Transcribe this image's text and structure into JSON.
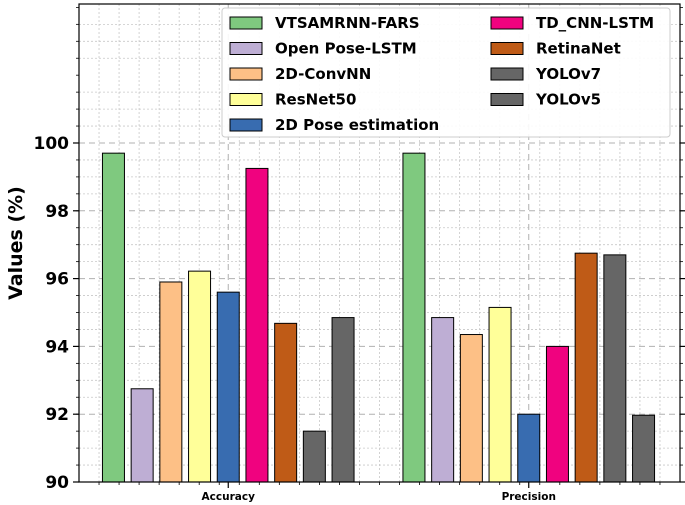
{
  "chart_data": {
    "type": "bar",
    "title": "",
    "xlabel": "",
    "ylabel": "Values (%)",
    "ylim": [
      90,
      104.1
    ],
    "yticks": [
      90,
      92,
      94,
      96,
      98,
      100
    ],
    "grid": true,
    "legend_position": "upper-right",
    "categories": [
      "Accuracy",
      "Precision"
    ],
    "series": [
      {
        "name": "VTSAMRNN-FARS",
        "color": "#7fc97f",
        "values": [
          99.7,
          99.7
        ]
      },
      {
        "name": "Open Pose-LSTM",
        "color": "#beaed4",
        "values": [
          92.75,
          94.85
        ]
      },
      {
        "name": "2D-ConvNN",
        "color": "#fdc086",
        "values": [
          95.9,
          94.35
        ]
      },
      {
        "name": "ResNet50",
        "color": "#ffff99",
        "values": [
          96.22,
          95.15
        ]
      },
      {
        "name": "2D Pose estimation",
        "color": "#386cb0",
        "values": [
          95.6,
          92.0
        ]
      },
      {
        "name": "TD_CNN-LSTM",
        "color": "#f0027f",
        "values": [
          99.25,
          94.0
        ]
      },
      {
        "name": "RetinaNet",
        "color": "#bf5b17",
        "values": [
          94.68,
          96.75
        ]
      },
      {
        "name": "YOLOv7",
        "color": "#666666",
        "values": [
          91.5,
          96.7
        ]
      },
      {
        "name": "YOLOv5",
        "color": "#666666",
        "values": [
          94.85,
          91.97
        ]
      }
    ]
  }
}
